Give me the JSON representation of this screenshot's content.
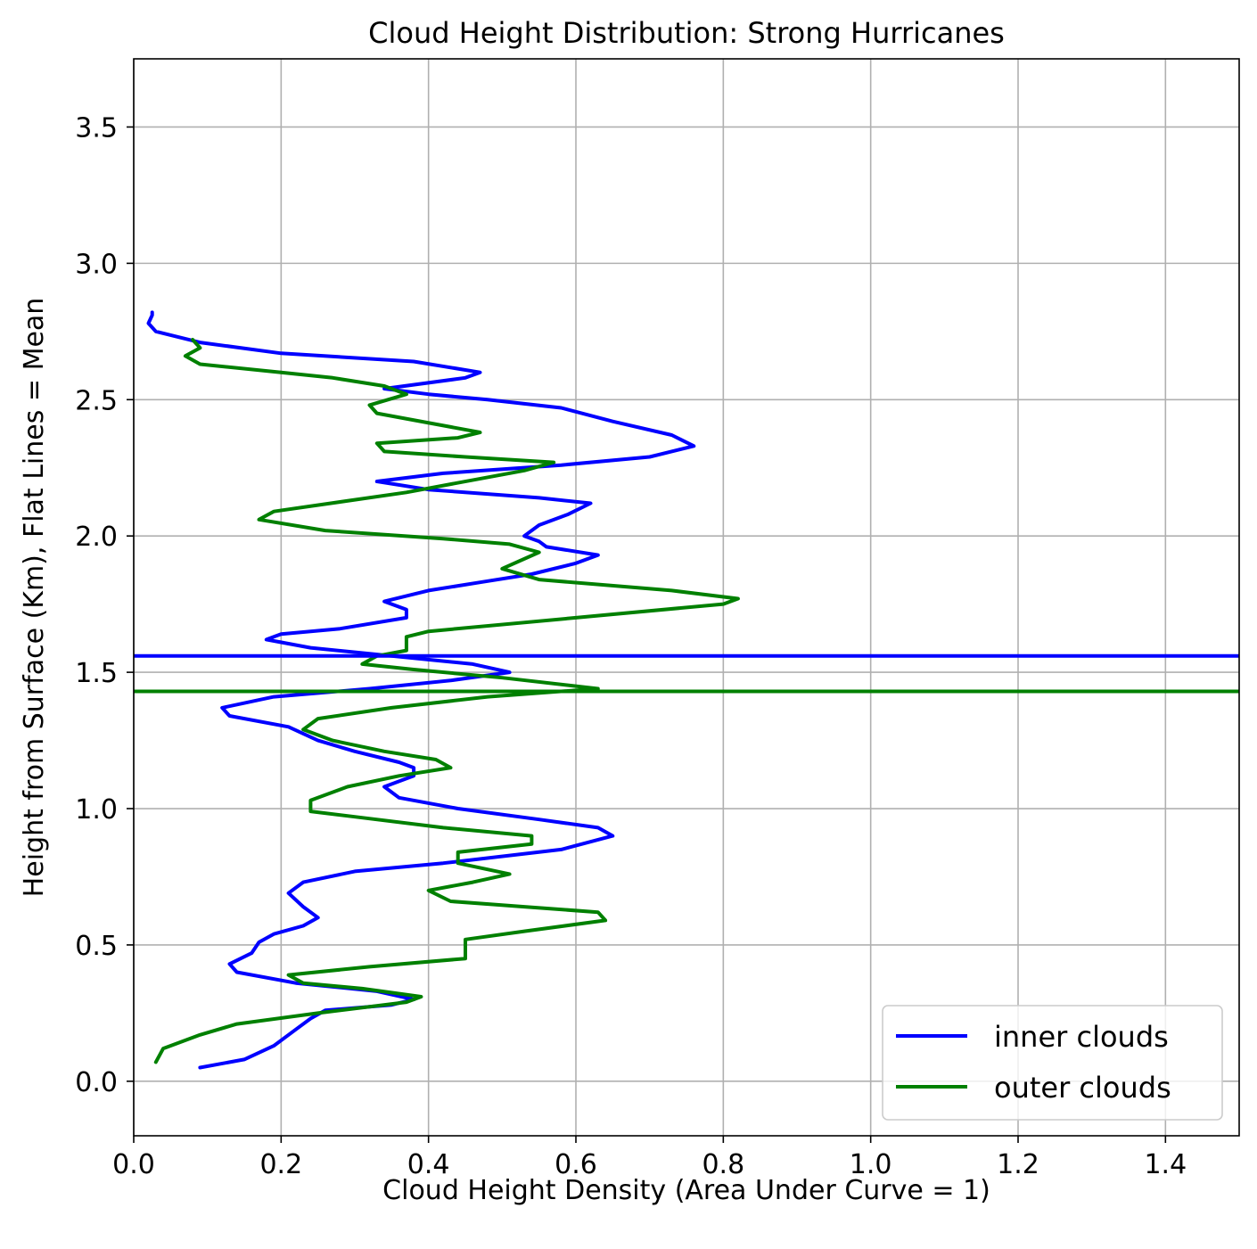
{
  "chart_data": {
    "type": "line",
    "title": "Cloud Height Distribution: Strong Hurricanes",
    "xlabel": "Cloud Height Density (Area Under Curve = 1)",
    "ylabel": "Height from Surface (Km), Flat Lines = Mean",
    "xlim": [
      0.0,
      1.5
    ],
    "ylim": [
      -0.2,
      3.75
    ],
    "xticks": [
      0.0,
      0.2,
      0.4,
      0.6,
      0.8,
      1.0,
      1.2,
      1.4
    ],
    "yticks": [
      0.0,
      0.5,
      1.0,
      1.5,
      2.0,
      2.5,
      3.0,
      3.5
    ],
    "xtick_labels": [
      "0.0",
      "0.2",
      "0.4",
      "0.6",
      "0.8",
      "1.0",
      "1.2",
      "1.4"
    ],
    "ytick_labels": [
      "0.0",
      "0.5",
      "1.0",
      "1.5",
      "2.0",
      "2.5",
      "3.0",
      "3.5"
    ],
    "grid": true,
    "legend_position": "bottom-right",
    "series": [
      {
        "name": "inner clouds",
        "color": "#0000ff",
        "mean": 1.56,
        "points": [
          [
            0.09,
            0.05
          ],
          [
            0.15,
            0.08
          ],
          [
            0.19,
            0.13
          ],
          [
            0.22,
            0.19
          ],
          [
            0.24,
            0.23
          ],
          [
            0.26,
            0.26
          ],
          [
            0.35,
            0.28
          ],
          [
            0.38,
            0.3
          ],
          [
            0.33,
            0.33
          ],
          [
            0.22,
            0.36
          ],
          [
            0.14,
            0.4
          ],
          [
            0.13,
            0.43
          ],
          [
            0.16,
            0.47
          ],
          [
            0.17,
            0.51
          ],
          [
            0.19,
            0.54
          ],
          [
            0.23,
            0.57
          ],
          [
            0.25,
            0.6
          ],
          [
            0.23,
            0.64
          ],
          [
            0.21,
            0.69
          ],
          [
            0.23,
            0.73
          ],
          [
            0.3,
            0.77
          ],
          [
            0.42,
            0.8
          ],
          [
            0.58,
            0.85
          ],
          [
            0.65,
            0.9
          ],
          [
            0.63,
            0.93
          ],
          [
            0.55,
            0.96
          ],
          [
            0.44,
            1.0
          ],
          [
            0.36,
            1.04
          ],
          [
            0.34,
            1.08
          ],
          [
            0.38,
            1.12
          ],
          [
            0.38,
            1.15
          ],
          [
            0.36,
            1.17
          ],
          [
            0.3,
            1.21
          ],
          [
            0.25,
            1.25
          ],
          [
            0.21,
            1.3
          ],
          [
            0.13,
            1.34
          ],
          [
            0.12,
            1.37
          ],
          [
            0.19,
            1.41
          ],
          [
            0.32,
            1.44
          ],
          [
            0.43,
            1.47
          ],
          [
            0.51,
            1.5
          ],
          [
            0.46,
            1.53
          ],
          [
            0.35,
            1.56
          ],
          [
            0.24,
            1.59
          ],
          [
            0.18,
            1.62
          ],
          [
            0.2,
            1.64
          ],
          [
            0.28,
            1.66
          ],
          [
            0.37,
            1.7
          ],
          [
            0.37,
            1.73
          ],
          [
            0.34,
            1.76
          ],
          [
            0.4,
            1.8
          ],
          [
            0.47,
            1.83
          ],
          [
            0.54,
            1.86
          ],
          [
            0.6,
            1.9
          ],
          [
            0.63,
            1.93
          ],
          [
            0.56,
            1.96
          ],
          [
            0.55,
            1.98
          ],
          [
            0.53,
            2.0
          ],
          [
            0.55,
            2.04
          ],
          [
            0.59,
            2.08
          ],
          [
            0.62,
            2.12
          ],
          [
            0.55,
            2.14
          ],
          [
            0.4,
            2.17
          ],
          [
            0.33,
            2.2
          ],
          [
            0.42,
            2.23
          ],
          [
            0.58,
            2.26
          ],
          [
            0.7,
            2.29
          ],
          [
            0.76,
            2.33
          ],
          [
            0.73,
            2.37
          ],
          [
            0.65,
            2.42
          ],
          [
            0.58,
            2.47
          ],
          [
            0.48,
            2.5
          ],
          [
            0.4,
            2.52
          ],
          [
            0.34,
            2.54
          ],
          [
            0.45,
            2.58
          ],
          [
            0.47,
            2.6
          ],
          [
            0.38,
            2.64
          ],
          [
            0.2,
            2.67
          ],
          [
            0.09,
            2.71
          ],
          [
            0.03,
            2.75
          ],
          [
            0.02,
            2.78
          ],
          [
            0.025,
            2.81
          ],
          [
            0.025,
            2.82
          ]
        ]
      },
      {
        "name": "outer clouds",
        "color": "#008000",
        "mean": 1.43,
        "points": [
          [
            0.03,
            0.07
          ],
          [
            0.04,
            0.12
          ],
          [
            0.09,
            0.17
          ],
          [
            0.14,
            0.21
          ],
          [
            0.25,
            0.25
          ],
          [
            0.37,
            0.29
          ],
          [
            0.39,
            0.31
          ],
          [
            0.31,
            0.34
          ],
          [
            0.23,
            0.36
          ],
          [
            0.21,
            0.39
          ],
          [
            0.32,
            0.42
          ],
          [
            0.45,
            0.45
          ],
          [
            0.45,
            0.48
          ],
          [
            0.45,
            0.52
          ],
          [
            0.53,
            0.55
          ],
          [
            0.64,
            0.59
          ],
          [
            0.63,
            0.62
          ],
          [
            0.53,
            0.64
          ],
          [
            0.43,
            0.66
          ],
          [
            0.4,
            0.7
          ],
          [
            0.46,
            0.73
          ],
          [
            0.51,
            0.76
          ],
          [
            0.44,
            0.8
          ],
          [
            0.44,
            0.84
          ],
          [
            0.54,
            0.87
          ],
          [
            0.54,
            0.9
          ],
          [
            0.42,
            0.93
          ],
          [
            0.3,
            0.97
          ],
          [
            0.24,
            0.99
          ],
          [
            0.24,
            1.03
          ],
          [
            0.29,
            1.08
          ],
          [
            0.36,
            1.12
          ],
          [
            0.43,
            1.15
          ],
          [
            0.41,
            1.18
          ],
          [
            0.34,
            1.21
          ],
          [
            0.27,
            1.25
          ],
          [
            0.23,
            1.29
          ],
          [
            0.25,
            1.33
          ],
          [
            0.35,
            1.37
          ],
          [
            0.48,
            1.41
          ],
          [
            0.63,
            1.44
          ],
          [
            0.5,
            1.48
          ],
          [
            0.38,
            1.51
          ],
          [
            0.31,
            1.53
          ],
          [
            0.33,
            1.56
          ],
          [
            0.37,
            1.58
          ],
          [
            0.37,
            1.61
          ],
          [
            0.37,
            1.63
          ],
          [
            0.4,
            1.65
          ],
          [
            0.6,
            1.7
          ],
          [
            0.8,
            1.75
          ],
          [
            0.82,
            1.77
          ],
          [
            0.73,
            1.8
          ],
          [
            0.55,
            1.84
          ],
          [
            0.5,
            1.88
          ],
          [
            0.55,
            1.94
          ],
          [
            0.51,
            1.97
          ],
          [
            0.42,
            1.99
          ],
          [
            0.26,
            2.02
          ],
          [
            0.17,
            2.06
          ],
          [
            0.19,
            2.09
          ],
          [
            0.37,
            2.16
          ],
          [
            0.53,
            2.24
          ],
          [
            0.57,
            2.27
          ],
          [
            0.45,
            2.29
          ],
          [
            0.34,
            2.31
          ],
          [
            0.33,
            2.34
          ],
          [
            0.44,
            2.36
          ],
          [
            0.47,
            2.38
          ],
          [
            0.43,
            2.4
          ],
          [
            0.33,
            2.45
          ],
          [
            0.32,
            2.48
          ],
          [
            0.37,
            2.52
          ],
          [
            0.34,
            2.55
          ],
          [
            0.27,
            2.58
          ],
          [
            0.2,
            2.6
          ],
          [
            0.09,
            2.63
          ],
          [
            0.07,
            2.66
          ],
          [
            0.09,
            2.69
          ],
          [
            0.08,
            2.72
          ]
        ]
      }
    ]
  },
  "legend": {
    "entries": [
      "inner clouds",
      "outer clouds"
    ]
  }
}
